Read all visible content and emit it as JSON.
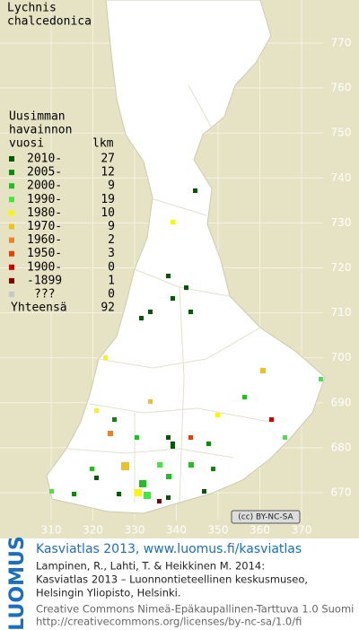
{
  "map": {
    "title": [
      "Lychnis",
      "chalcedonica"
    ],
    "legend": {
      "header": [
        "Uusimman",
        "havainnon",
        "vuosi"
      ],
      "count_header": "lkm",
      "rows": [
        {
          "label": "2010-",
          "count": 27,
          "color": "#005a00"
        },
        {
          "label": "2005-",
          "count": 12,
          "color": "#0a8a0a"
        },
        {
          "label": "2000-",
          "count": 9,
          "color": "#20c020"
        },
        {
          "label": "1990-",
          "count": 19,
          "color": "#40e840"
        },
        {
          "label": "1980-",
          "count": 10,
          "color": "#f8f800"
        },
        {
          "label": "1970-",
          "count": 9,
          "color": "#f0c020"
        },
        {
          "label": "1960-",
          "count": 2,
          "color": "#f08020"
        },
        {
          "label": "1950-",
          "count": 3,
          "color": "#e04000"
        },
        {
          "label": "1900-",
          "count": 0,
          "color": "#d00000"
        },
        {
          "label": "-1899",
          "count": 1,
          "color": "#800000"
        },
        {
          "label": "???",
          "count": 0,
          "color": "#c8c8c8"
        }
      ],
      "total_label": "Yhteensä",
      "total": 92
    },
    "x_labels": [
      310,
      320,
      330,
      340,
      350,
      360,
      370
    ],
    "y_labels": [
      770,
      760,
      750,
      740,
      730,
      720,
      710,
      700,
      690,
      680,
      670
    ],
    "license_badge": "(cc) BY-NC-SA"
  },
  "footer": {
    "logo": "LUOMUS",
    "headline": "Kasviatlas 2013, www.luomus.fi/kasviatlas",
    "citation": [
      "Lampinen, R., Lahti, T. & Heikkinen M. 2014:",
      "Kasviatlas 2013 – Luonnontieteellinen keskusmuseo,",
      "Helsingin Yliopisto, Helsinki."
    ],
    "license": [
      "Creative Commons Nimeä-Epäkaupallinen-Tarttuva 1.0 Suomi",
      "http://creativecommons.org/licenses/by-nc-sa/1.0/fi"
    ]
  }
}
